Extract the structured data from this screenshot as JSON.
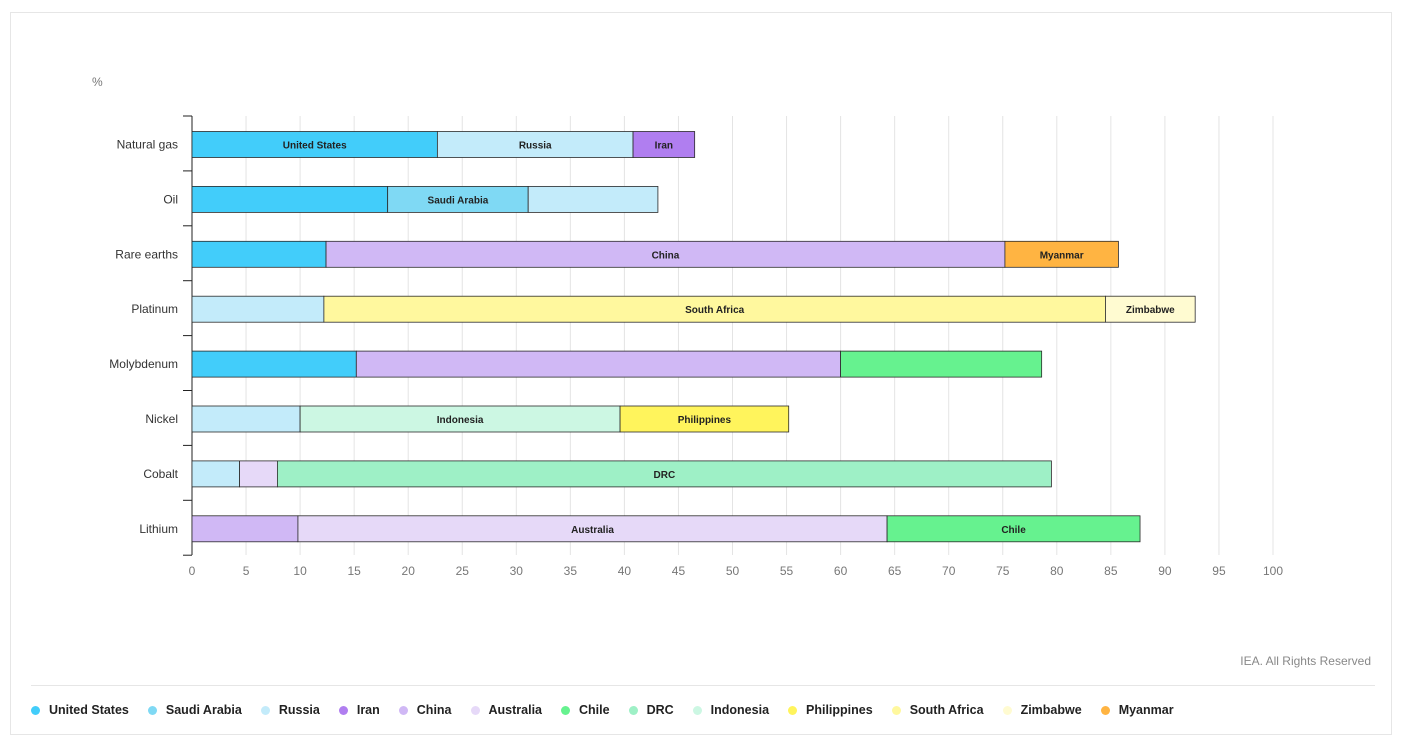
{
  "chart_data": {
    "type": "bar",
    "orientation": "horizontal",
    "stacked": true,
    "unit": "%",
    "xlim": [
      0,
      100
    ],
    "xticks": [
      0,
      5,
      10,
      15,
      20,
      25,
      30,
      35,
      40,
      45,
      50,
      55,
      60,
      65,
      70,
      75,
      80,
      85,
      90,
      95,
      100
    ],
    "grid": true,
    "legend_position": "bottom",
    "categories": [
      "Natural gas",
      "Oil",
      "Rare earths",
      "Platinum",
      "Molybdenum",
      "Nickel",
      "Cobalt",
      "Lithium"
    ],
    "series_colors": {
      "United States": "#42cdfa",
      "Saudi Arabia": "#7fd9f4",
      "Russia": "#c3ebfa",
      "Iran": "#b07ef0",
      "China": "#d0b8f5",
      "Australia": "#e6d9f8",
      "Chile": "#66f28f",
      "DRC": "#9ef0c6",
      "Indonesia": "#ccf7e3",
      "Philippines": "#fff45c",
      "South Africa": "#fff89e",
      "Zimbabwe": "#fffbd1",
      "Myanmar": "#ffb442"
    },
    "legend": [
      "United States",
      "Saudi Arabia",
      "Russia",
      "Iran",
      "China",
      "Australia",
      "Chile",
      "DRC",
      "Indonesia",
      "Philippines",
      "South Africa",
      "Zimbabwe",
      "Myanmar"
    ],
    "bars": [
      {
        "category": "Natural gas",
        "segments": [
          {
            "series": "United States",
            "value": 22.7,
            "label": "United States"
          },
          {
            "series": "Russia",
            "value": 18.1,
            "label": "Russia"
          },
          {
            "series": "Iran",
            "value": 5.7,
            "label": "Iran"
          }
        ]
      },
      {
        "category": "Oil",
        "segments": [
          {
            "series": "United States",
            "value": 18.1,
            "label": ""
          },
          {
            "series": "Saudi Arabia",
            "value": 13.0,
            "label": "Saudi Arabia"
          },
          {
            "series": "Russia",
            "value": 12.0,
            "label": ""
          }
        ]
      },
      {
        "category": "Rare earths",
        "segments": [
          {
            "series": "United States",
            "value": 12.4,
            "label": ""
          },
          {
            "series": "China",
            "value": 62.8,
            "label": "China"
          },
          {
            "series": "Myanmar",
            "value": 10.5,
            "label": "Myanmar"
          }
        ]
      },
      {
        "category": "Platinum",
        "segments": [
          {
            "series": "Russia",
            "value": 12.2,
            "label": ""
          },
          {
            "series": "South Africa",
            "value": 72.3,
            "label": "South Africa"
          },
          {
            "series": "Zimbabwe",
            "value": 8.3,
            "label": "Zimbabwe"
          }
        ]
      },
      {
        "category": "Molybdenum",
        "segments": [
          {
            "series": "United States",
            "value": 15.2,
            "label": ""
          },
          {
            "series": "China",
            "value": 44.8,
            "label": ""
          },
          {
            "series": "Chile",
            "value": 18.6,
            "label": ""
          }
        ]
      },
      {
        "category": "Nickel",
        "segments": [
          {
            "series": "Russia",
            "value": 10.0,
            "label": ""
          },
          {
            "series": "Indonesia",
            "value": 29.6,
            "label": "Indonesia"
          },
          {
            "series": "Philippines",
            "value": 15.6,
            "label": "Philippines"
          }
        ]
      },
      {
        "category": "Cobalt",
        "segments": [
          {
            "series": "Russia",
            "value": 4.4,
            "label": ""
          },
          {
            "series": "Australia",
            "value": 3.5,
            "label": ""
          },
          {
            "series": "DRC",
            "value": 71.6,
            "label": "DRC"
          }
        ]
      },
      {
        "category": "Lithium",
        "segments": [
          {
            "series": "China",
            "value": 9.8,
            "label": ""
          },
          {
            "series": "Australia",
            "value": 54.5,
            "label": "Australia"
          },
          {
            "series": "Chile",
            "value": 23.4,
            "label": "Chile"
          }
        ]
      }
    ]
  },
  "footer": {
    "credit": "IEA. All Rights Reserved"
  }
}
